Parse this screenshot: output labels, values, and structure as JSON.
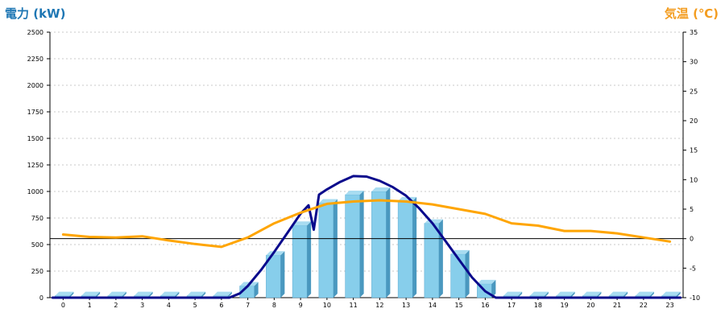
{
  "chart_data": {
    "type": "bar",
    "x_categories": [
      "0",
      "1",
      "2",
      "3",
      "4",
      "5",
      "6",
      "7",
      "8",
      "9",
      "10",
      "11",
      "12",
      "13",
      "14",
      "15",
      "16",
      "17",
      "18",
      "19",
      "20",
      "21",
      "22",
      "23"
    ],
    "left_axis": {
      "label": "電力 (kW)",
      "range": [
        0,
        2500
      ],
      "ticks": [
        0,
        250,
        500,
        750,
        1000,
        1250,
        1500,
        1750,
        2000,
        2250,
        2500
      ]
    },
    "right_axis": {
      "label": "気温 (℃)",
      "range": [
        -10,
        35
      ],
      "ticks": [
        -10,
        -5,
        0,
        5,
        10,
        15,
        20,
        25,
        30,
        35
      ]
    },
    "series": [
      {
        "type": "bar",
        "axis": "left",
        "color": "#87ceeb",
        "values": [
          18,
          18,
          18,
          18,
          18,
          18,
          18,
          110,
          400,
          680,
          890,
          970,
          1000,
          910,
          700,
          410,
          130,
          18,
          18,
          18,
          18,
          18,
          18,
          18
        ]
      },
      {
        "type": "line",
        "axis": "left",
        "color": "#0a0a8c",
        "points": [
          [
            -0.4,
            0
          ],
          [
            6.3,
            0
          ],
          [
            6.7,
            40
          ],
          [
            7.0,
            110
          ],
          [
            7.5,
            260
          ],
          [
            8.0,
            430
          ],
          [
            8.5,
            610
          ],
          [
            9.0,
            790
          ],
          [
            9.3,
            870
          ],
          [
            9.5,
            640
          ],
          [
            9.7,
            970
          ],
          [
            10.0,
            1020
          ],
          [
            10.5,
            1090
          ],
          [
            11.0,
            1145
          ],
          [
            11.5,
            1140
          ],
          [
            12.0,
            1100
          ],
          [
            12.5,
            1040
          ],
          [
            13.0,
            960
          ],
          [
            13.5,
            840
          ],
          [
            14.0,
            700
          ],
          [
            14.5,
            530
          ],
          [
            15.0,
            360
          ],
          [
            15.5,
            190
          ],
          [
            16.0,
            60
          ],
          [
            16.4,
            0
          ],
          [
            23.4,
            0
          ]
        ]
      },
      {
        "type": "line",
        "axis": "right",
        "color": "#ffa500",
        "values": [
          0.7,
          0.3,
          0.2,
          0.4,
          -0.3,
          -0.9,
          -1.4,
          0.2,
          2.6,
          4.4,
          5.9,
          6.3,
          6.5,
          6.3,
          5.8,
          5.0,
          4.2,
          2.6,
          2.2,
          1.3,
          1.3,
          0.9,
          0.2,
          -0.5
        ]
      }
    ],
    "reference_line": {
      "axis": "right",
      "value": 0
    },
    "grid": {
      "horizontal": true,
      "style": "dotted"
    }
  }
}
